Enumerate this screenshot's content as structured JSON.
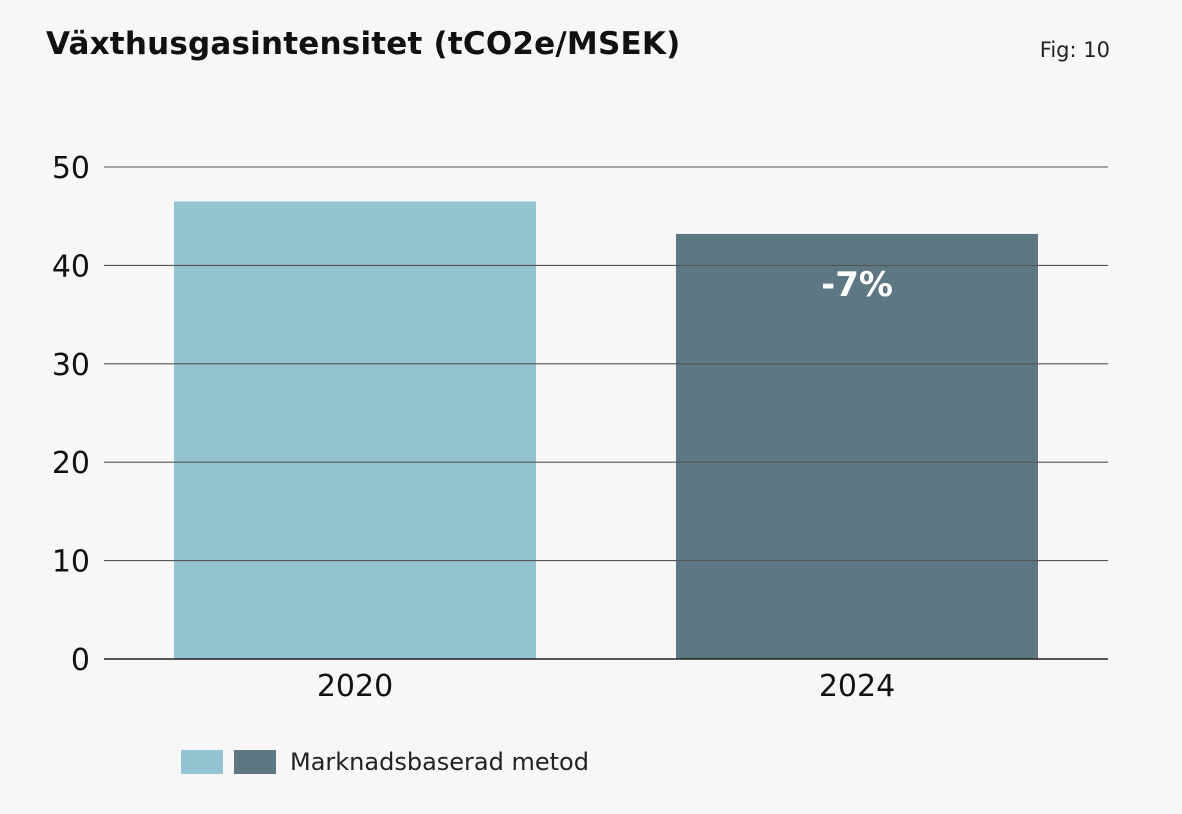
{
  "title": "Växthusgasintensitet (tCO2e/MSEK)",
  "fig_label": "Fig: 10",
  "chart_data": {
    "type": "bar",
    "title": "Växthusgasintensitet (tCO2e/MSEK)",
    "xlabel": "",
    "ylabel": "",
    "categories": [
      "2020",
      "2024"
    ],
    "values": [
      46.5,
      43.2
    ],
    "bar_colors": [
      "#94c3d2",
      "#5e7883"
    ],
    "ylim": [
      0,
      50
    ],
    "yticks": [
      0,
      10,
      20,
      30,
      40,
      50
    ],
    "grid": true,
    "annotations": [
      {
        "category": "2024",
        "text": "-7%",
        "color": "#ffffff"
      }
    ],
    "legend": {
      "placement": "bottom-left",
      "label": "Marknadsbaserad metod",
      "swatch_colors": [
        "#94c3d2",
        "#5e7883"
      ]
    }
  }
}
